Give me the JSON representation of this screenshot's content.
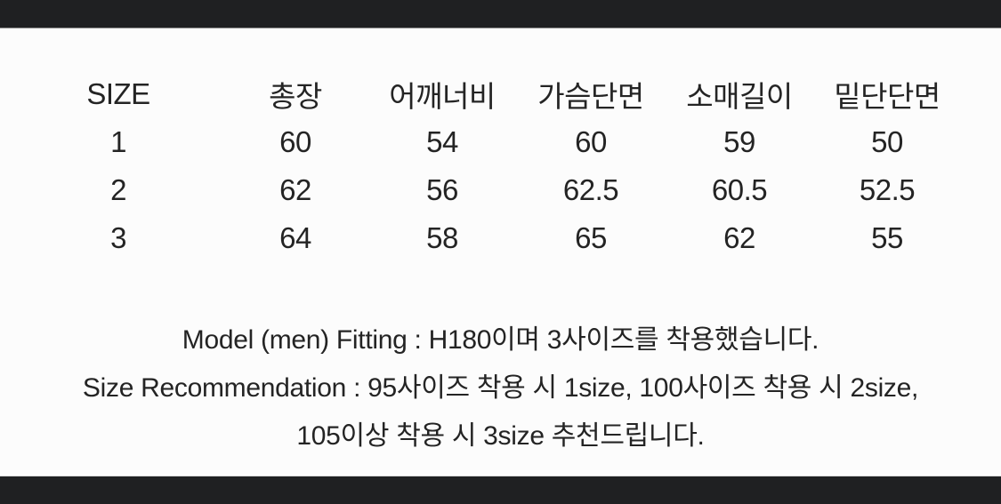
{
  "colors": {
    "letterbox": "#1f2022",
    "background": "#fcfcfc",
    "text": "#242424"
  },
  "chart_data": {
    "type": "table",
    "columns": [
      "SIZE",
      "총장",
      "어깨너비",
      "가슴단면",
      "소매길이",
      "밑단단면"
    ],
    "rows": [
      [
        "1",
        "60",
        "54",
        "60",
        "59",
        "50"
      ],
      [
        "2",
        "62",
        "56",
        "62.5",
        "60.5",
        "52.5"
      ],
      [
        "3",
        "64",
        "58",
        "65",
        "62",
        "55"
      ]
    ],
    "notes": [
      "Model (men) Fitting : H180이며 3사이즈를 착용했습니다.",
      "Size Recommendation : 95사이즈 착용 시 1size, 100사이즈 착용 시 2size,",
      "105이상 착용 시 3size 추천드립니다."
    ]
  }
}
